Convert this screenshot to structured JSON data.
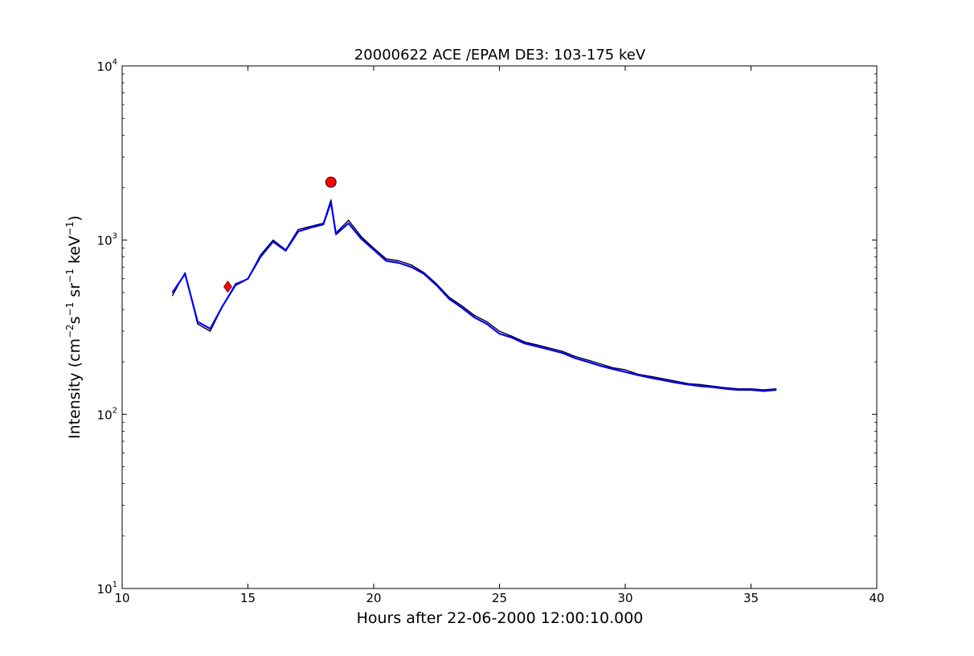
{
  "chart_data": {
    "type": "line",
    "title": "20000622 ACE /EPAM DE3: 103-175 keV",
    "xlabel": "Hours after 22-06-2000 12:00:10.000",
    "ylabel": {
      "prefix": "Intensity (cm",
      "sup1": "−2",
      "mid1": "s",
      "sup2": "−1",
      "mid2": " sr",
      "sup3": "−1",
      "mid3": " keV",
      "sup4": "−1",
      "suffix": ")"
    },
    "xlim": [
      10,
      40
    ],
    "ylim": [
      10,
      10000
    ],
    "yscale": "log",
    "x_ticks": [
      10,
      15,
      20,
      25,
      30,
      35,
      40
    ],
    "x_tick_labels": [
      "10",
      "15",
      "20",
      "25",
      "30",
      "35",
      "40"
    ],
    "y_ticks": [
      10,
      100,
      1000,
      10000
    ],
    "y_tick_labels": [
      {
        "base": "10",
        "exp": "1"
      },
      {
        "base": "10",
        "exp": "2"
      },
      {
        "base": "10",
        "exp": "3"
      },
      {
        "base": "10",
        "exp": "4"
      }
    ],
    "series": [
      {
        "color": "#000000",
        "x": [
          12.0,
          12.5,
          13.0,
          13.5,
          14.0,
          14.5,
          15.0,
          15.5,
          16.0,
          16.5,
          17.0,
          17.5,
          18.0,
          18.3,
          18.5,
          19.0,
          19.5,
          20.0,
          20.5,
          21.0,
          21.5,
          22.0,
          22.5,
          23.0,
          23.5,
          24.0,
          24.5,
          25.0,
          25.5,
          26.0,
          26.5,
          27.0,
          27.5,
          28.0,
          28.5,
          29.0,
          29.5,
          30.0,
          30.5,
          31.0,
          31.5,
          32.0,
          32.5,
          33.0,
          33.5,
          34.0,
          34.5,
          35.0,
          35.5,
          36.0
        ],
        "values": [
          480,
          650,
          330,
          300,
          420,
          560,
          600,
          820,
          1000,
          880,
          1150,
          1200,
          1250,
          1700,
          1100,
          1300,
          1050,
          900,
          780,
          760,
          720,
          650,
          560,
          470,
          420,
          370,
          340,
          300,
          280,
          260,
          250,
          240,
          230,
          215,
          205,
          195,
          185,
          180,
          170,
          165,
          160,
          155,
          150,
          148,
          145,
          142,
          140,
          140,
          138,
          140
        ]
      },
      {
        "color": "#0000ff",
        "x": [
          12.0,
          12.5,
          13.0,
          13.5,
          14.0,
          14.5,
          15.0,
          15.5,
          16.0,
          16.5,
          17.0,
          17.5,
          18.0,
          18.3,
          18.5,
          19.0,
          19.5,
          20.0,
          20.5,
          21.0,
          21.5,
          22.0,
          22.5,
          23.0,
          23.5,
          24.0,
          24.5,
          25.0,
          25.5,
          26.0,
          26.5,
          27.0,
          27.5,
          28.0,
          28.5,
          29.0,
          29.5,
          30.0,
          30.5,
          31.0,
          31.5,
          32.0,
          32.5,
          33.0,
          33.5,
          34.0,
          34.5,
          35.0,
          35.5,
          36.0
        ],
        "values": [
          500,
          640,
          340,
          310,
          420,
          550,
          600,
          800,
          980,
          870,
          1120,
          1180,
          1230,
          1650,
          1080,
          1250,
          1020,
          880,
          760,
          740,
          700,
          640,
          550,
          460,
          410,
          360,
          330,
          290,
          275,
          255,
          245,
          235,
          225,
          210,
          200,
          190,
          182,
          175,
          168,
          162,
          157,
          152,
          148,
          145,
          143,
          140,
          138,
          138,
          136,
          138
        ]
      }
    ],
    "markers": [
      {
        "shape": "diamond",
        "color": "#ff0000",
        "x": 14.2,
        "y": 540
      },
      {
        "shape": "circle",
        "color": "#ff0000",
        "x": 18.3,
        "y": 2150
      }
    ]
  }
}
